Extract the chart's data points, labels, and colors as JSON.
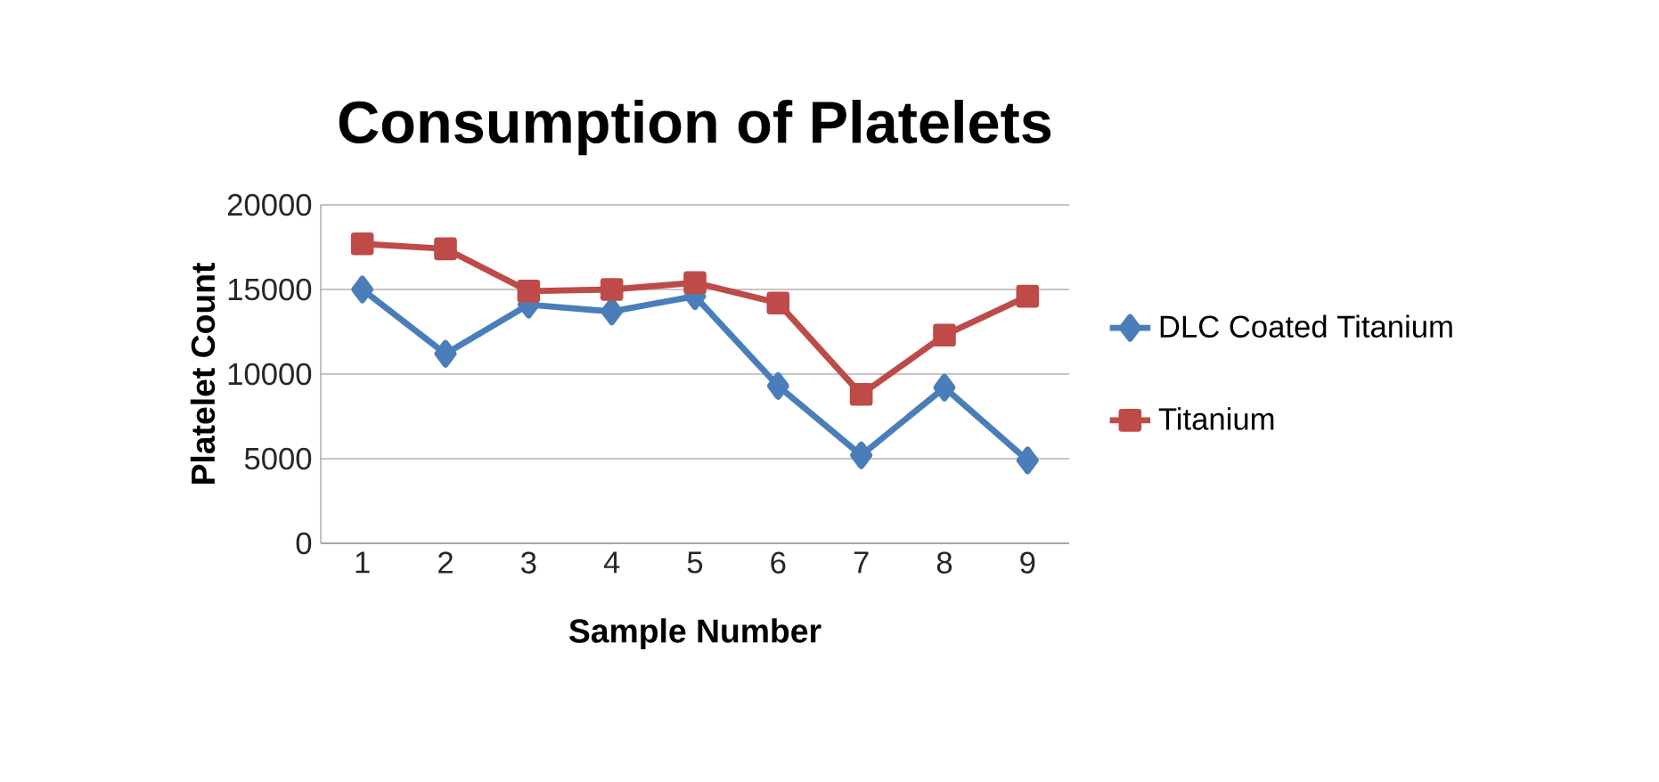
{
  "chart_data": {
    "type": "line",
    "title": "Consumption of Platelets",
    "xlabel": "Sample Number",
    "ylabel": "Platelet Count",
    "categories": [
      "1",
      "2",
      "3",
      "4",
      "5",
      "6",
      "7",
      "8",
      "9"
    ],
    "series": [
      {
        "name": "DLC Coated Titanium",
        "color": "#4a7ebb",
        "marker": "diamond",
        "values": [
          15000,
          11200,
          14100,
          13700,
          14600,
          9300,
          5200,
          9200,
          4900
        ]
      },
      {
        "name": "Titanium",
        "color": "#be4b48",
        "marker": "square",
        "values": [
          17700,
          17400,
          14900,
          15000,
          15400,
          14200,
          8800,
          12300,
          14600
        ]
      }
    ],
    "ylim": [
      0,
      20000
    ],
    "yticks": [
      0,
      5000,
      10000,
      15000,
      20000
    ],
    "grid": "y",
    "legend": "right",
    "line_style": "solid"
  }
}
